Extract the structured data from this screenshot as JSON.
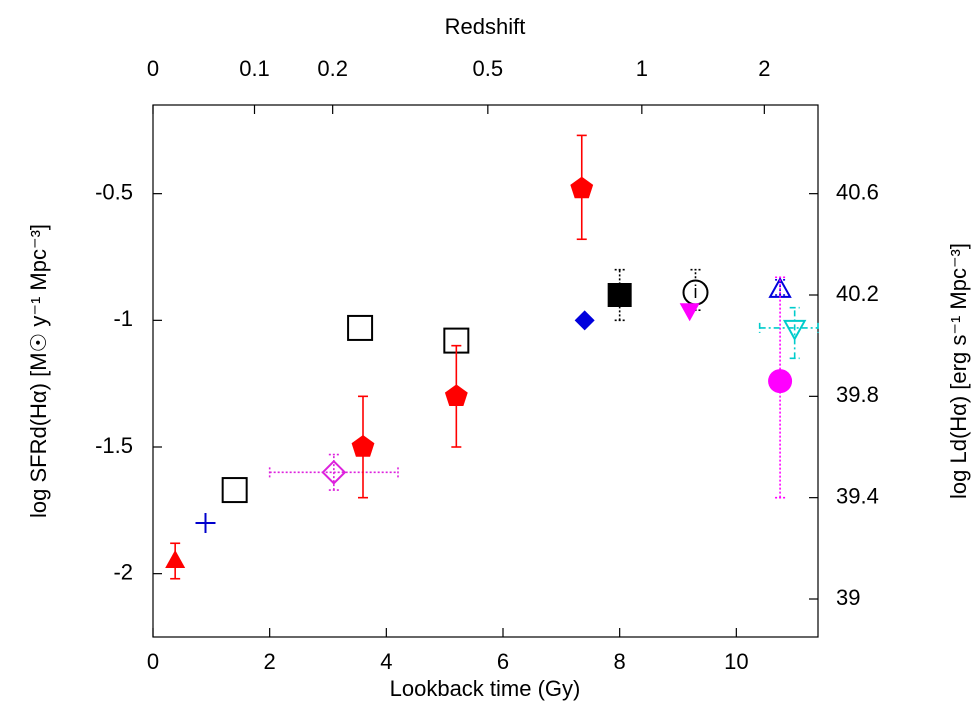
{
  "chart_data": {
    "type": "scatter",
    "xlabel": "Lookback time (Gy)",
    "x2label": "Redshift",
    "ylabel": "log SFRd(Hα)  [M☉ y⁻¹ Mpc⁻³]",
    "y2label": "log Ld(Hα)  [erg s⁻¹ Mpc⁻³]",
    "xlim": [
      0,
      11.4
    ],
    "xticks": [
      0,
      2,
      4,
      6,
      8,
      10
    ],
    "x2ticks": [
      {
        "value": 0,
        "label": "0"
      },
      {
        "value": 1.74,
        "label": "0.1"
      },
      {
        "value": 3.08,
        "label": "0.2"
      },
      {
        "value": 5.74,
        "label": "0.5"
      },
      {
        "value": 8.38,
        "label": "1"
      },
      {
        "value": 10.48,
        "label": "2"
      }
    ],
    "ylim": [
      -2.25,
      -0.15
    ],
    "yticks": [
      -2,
      -1.5,
      -1,
      -0.5
    ],
    "y2lim": [
      38.85,
      40.95
    ],
    "y2ticks": [
      39,
      39.4,
      39.8,
      40.2,
      40.6
    ],
    "series": [
      {
        "marker": "triangle",
        "color": "#ff0000",
        "errstyle": "solid",
        "x": [
          0.38
        ],
        "values": [
          -1.95
        ],
        "ylow": [
          -2.02
        ],
        "yhigh": [
          -1.88
        ]
      },
      {
        "marker": "plus",
        "color": "#0000cc",
        "x": [
          0.9
        ],
        "values": [
          -1.8
        ]
      },
      {
        "marker": "square-open",
        "color": "#000000",
        "x": [
          1.4,
          3.55,
          5.2
        ],
        "values": [
          -1.67,
          -1.03,
          -1.08
        ]
      },
      {
        "marker": "diamond-open",
        "color": "#dd22dd",
        "errstyle": "dotted",
        "x": [
          3.1
        ],
        "values": [
          -1.6
        ],
        "ylow": [
          -1.67
        ],
        "yhigh": [
          -1.53
        ],
        "xlow": [
          2.0
        ],
        "xhigh": [
          4.2
        ]
      },
      {
        "marker": "pentagon",
        "color": "#ff0000",
        "errstyle": "solid",
        "x": [
          3.6,
          5.2,
          7.35
        ],
        "values": [
          -1.5,
          -1.3,
          -0.48
        ],
        "ylow": [
          -1.7,
          -1.5,
          -0.68
        ],
        "yhigh": [
          -1.3,
          -1.1,
          -0.27
        ]
      },
      {
        "marker": "diamond",
        "color": "#0000dd",
        "x": [
          7.4
        ],
        "values": [
          -1.0
        ]
      },
      {
        "marker": "square",
        "color": "#000000",
        "errstyle": "dotted",
        "x": [
          8.0
        ],
        "values": [
          -0.9
        ],
        "ylow": [
          -1.0
        ],
        "yhigh": [
          -0.8
        ]
      },
      {
        "marker": "circle-open",
        "color": "#000000",
        "errstyle": "dotted",
        "label": "i",
        "x": [
          9.3
        ],
        "values": [
          -0.89
        ],
        "ylow": [
          -0.96
        ],
        "yhigh": [
          -0.8
        ]
      },
      {
        "marker": "triangle-down",
        "color": "#ff00ff",
        "x": [
          9.2
        ],
        "values": [
          -0.96
        ]
      },
      {
        "marker": "triangle-open",
        "color": "#0000dd",
        "errstyle": "dotted",
        "x": [
          10.75
        ],
        "values": [
          -0.88
        ],
        "ylow": [
          -0.9
        ],
        "yhigh": [
          -0.84
        ]
      },
      {
        "marker": "circle",
        "color": "#ff00ff",
        "errstyle": "dotted",
        "x": [
          10.75
        ],
        "values": [
          -1.24
        ],
        "ylow": [
          -1.7
        ],
        "yhigh": [
          -0.83
        ]
      },
      {
        "marker": "triangle-down-open",
        "color": "#00cccc",
        "errstyle": "dashdot",
        "x": [
          11.0
        ],
        "values": [
          -1.03
        ],
        "ylow": [
          -1.15
        ],
        "yhigh": [
          -0.95
        ],
        "xlow": [
          10.4
        ],
        "xhigh": [
          11.4
        ]
      }
    ]
  }
}
